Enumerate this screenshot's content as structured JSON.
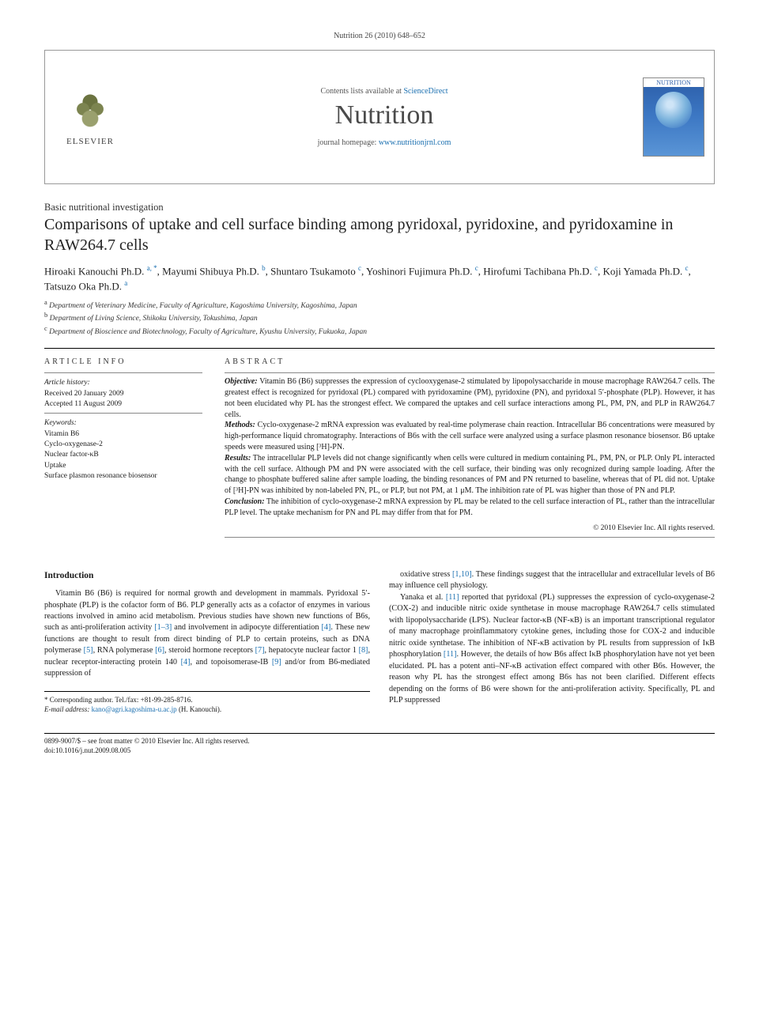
{
  "header": {
    "citation": "Nutrition 26 (2010) 648–652",
    "contents_prefix": "Contents lists available at ",
    "contents_link": "ScienceDirect",
    "journal": "Nutrition",
    "home_prefix": "journal homepage: ",
    "home_link": "www.nutritionjrnl.com",
    "elsevier": "ELSEVIER",
    "cover_label": "NUTRITION"
  },
  "article": {
    "section_label": "Basic nutritional investigation",
    "title": "Comparisons of uptake and cell surface binding among pyridoxal, pyridoxine, and pyridoxamine in RAW264.7 cells",
    "authors_html": "Hiroaki Kanouchi Ph.D. <span class='aff'>a, *</span>, Mayumi Shibuya Ph.D. <span class='aff'>b</span>, Shuntaro Tsukamoto <span class='aff'>c</span>, Yoshinori Fujimura Ph.D. <span class='aff'>c</span>, Hirofumi Tachibana Ph.D. <span class='aff'>c</span>, Koji Yamada Ph.D. <span class='aff'>c</span>, Tatsuzo Oka Ph.D. <span class='aff'>a</span>",
    "affiliations": [
      {
        "tag": "a",
        "text": "Department of Veterinary Medicine, Faculty of Agriculture, Kagoshima University, Kagoshima, Japan"
      },
      {
        "tag": "b",
        "text": "Department of Living Science, Shikoku University, Tokushima, Japan"
      },
      {
        "tag": "c",
        "text": "Department of Bioscience and Biotechnology, Faculty of Agriculture, Kyushu University, Fukuoka, Japan"
      }
    ]
  },
  "info": {
    "heading": "ARTICLE INFO",
    "history_label": "Article history:",
    "received": "Received 20 January 2009",
    "accepted": "Accepted 11 August 2009",
    "keywords_label": "Keywords:",
    "keywords": [
      "Vitamin B6",
      "Cyclo-oxygenase-2",
      "Nuclear factor-κB",
      "Uptake",
      "Surface plasmon resonance biosensor"
    ]
  },
  "abstract": {
    "heading": "ABSTRACT",
    "objective_label": "Objective:",
    "objective": "Vitamin B6 (B6) suppresses the expression of cyclooxygenase-2 stimulated by lipopolysaccharide in mouse macrophage RAW264.7 cells. The greatest effect is recognized for pyridoxal (PL) compared with pyridoxamine (PM), pyridoxine (PN), and pyridoxal 5′-phosphate (PLP). However, it has not been elucidated why PL has the strongest effect. We compared the uptakes and cell surface interactions among PL, PM, PN, and PLP in RAW264.7 cells.",
    "methods_label": "Methods:",
    "methods": "Cyclo-oxygenase-2 mRNA expression was evaluated by real-time polymerase chain reaction. Intracellular B6 concentrations were measured by high-performance liquid chromatography. Interactions of B6s with the cell surface were analyzed using a surface plasmon resonance biosensor. B6 uptake speeds were measured using [³H]-PN.",
    "results_label": "Results:",
    "results": "The intracellular PLP levels did not change significantly when cells were cultured in medium containing PL, PM, PN, or PLP. Only PL interacted with the cell surface. Although PM and PN were associated with the cell surface, their binding was only recognized during sample loading. After the change to phosphate buffered saline after sample loading, the binding resonances of PM and PN returned to baseline, whereas that of PL did not. Uptake of [³H]-PN was inhibited by non-labeled PN, PL, or PLP, but not PM, at 1 μM. The inhibition rate of PL was higher than those of PN and PLP.",
    "conclusion_label": "Conclusion:",
    "conclusion": "The inhibition of cyclo-oxygenase-2 mRNA expression by PL may be related to the cell surface interaction of PL, rather than the intracellular PLP level. The uptake mechanism for PN and PL may differ from that for PM.",
    "copyright": "© 2010 Elsevier Inc. All rights reserved."
  },
  "body": {
    "intro_heading": "Introduction",
    "p1": "Vitamin B6 (B6) is required for normal growth and development in mammals. Pyridoxal 5′-phosphate (PLP) is the cofactor form of B6. PLP generally acts as a cofactor of enzymes in various reactions involved in amino acid metabolism. Previous studies have shown new functions of B6s, such as anti-proliferation activity [1–3] and involvement in adipocyte differentiation [4]. These new functions are thought to result from direct binding of PLP to certain proteins, such as DNA polymerase [5], RNA polymerase [6], steroid hormone receptors [7], hepatocyte nuclear factor 1 [8], nuclear receptor-interacting protein 140 [4], and topoisomerase-IB [9] and/or from B6-mediated suppression of",
    "p2": "oxidative stress [1,10]. These findings suggest that the intracellular and extracellular levels of B6 may influence cell physiology.",
    "p3": "Yanaka et al. [11] reported that pyridoxal (PL) suppresses the expression of cyclo-oxygenase-2 (COX-2) and inducible nitric oxide synthetase in mouse macrophage RAW264.7 cells stimulated with lipopolysaccharide (LPS). Nuclear factor-κB (NF-κB) is an important transcriptional regulator of many macrophage proinflammatory cytokine genes, including those for COX-2 and inducible nitric oxide synthetase. The inhibition of NF-κB activation by PL results from suppression of IκB phosphorylation [11]. However, the details of how B6s affect IκB phosphorylation have not yet been elucidated. PL has a potent anti–NF-κB activation effect compared with other B6s. However, the reason why PL has the strongest effect among B6s has not been clarified. Different effects depending on the forms of B6 were shown for the anti-proliferation activity. Specifically, PL and PLP suppressed"
  },
  "footnote": {
    "corr": "* Corresponding author. Tel./fax: +81-99-285-8716.",
    "email_label": "E-mail address:",
    "email": "kano@agri.kagoshima-u.ac.jp",
    "email_name": "(H. Kanouchi)."
  },
  "footer": {
    "issn": "0899-9007/$ – see front matter © 2010 Elsevier Inc. All rights reserved.",
    "doi": "doi:10.1016/j.nut.2009.08.005"
  },
  "colors": {
    "link": "#1a6fb0",
    "text": "#1a1a1a",
    "rule": "#000000"
  }
}
